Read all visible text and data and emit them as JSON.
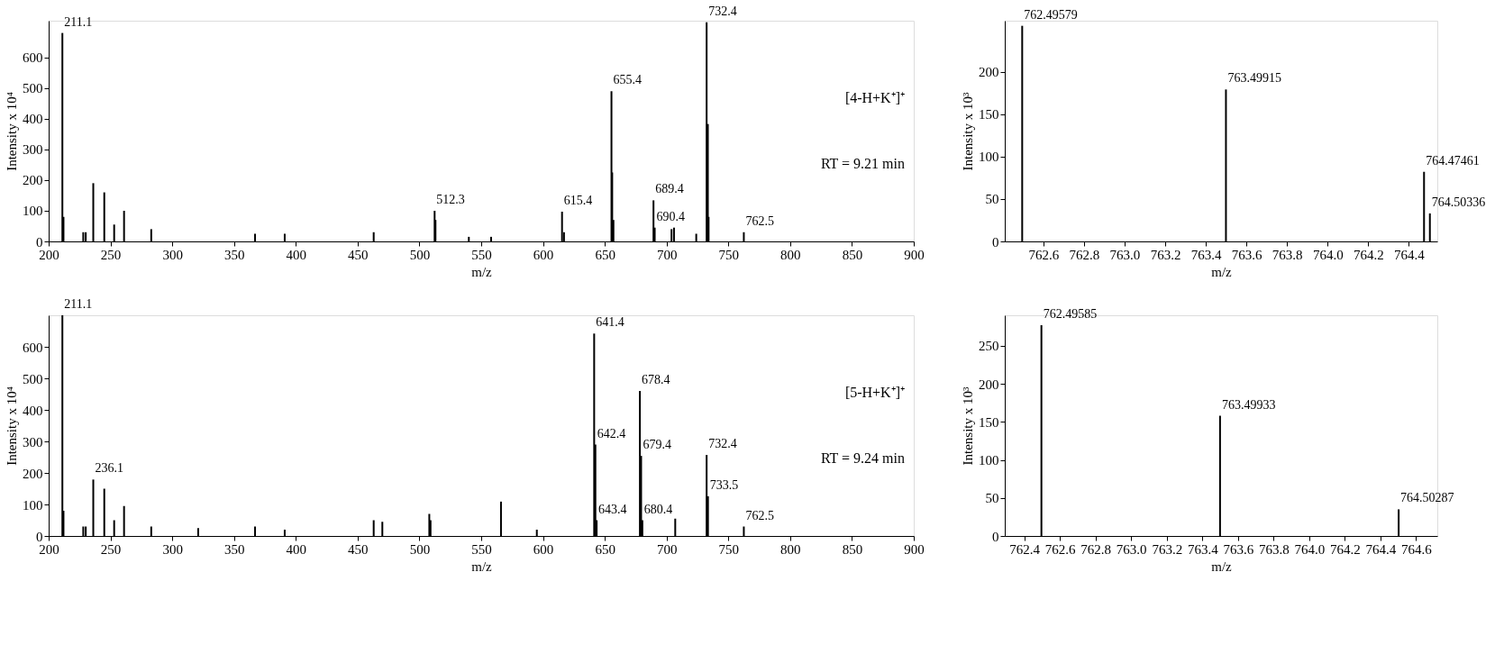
{
  "chart_data": [
    {
      "type": "bar",
      "color": "#000000",
      "xlabel": "m/z",
      "ylabel": "Intensity x 10⁴",
      "xlim": [
        200,
        900
      ],
      "xticks": [
        200,
        250,
        300,
        350,
        400,
        450,
        500,
        550,
        600,
        650,
        700,
        750,
        800,
        850,
        900
      ],
      "ylim": [
        0,
        720
      ],
      "yticks": [
        0,
        100,
        200,
        300,
        400,
        500,
        600
      ],
      "grid": false,
      "x": [
        211.1,
        212.0,
        228.0,
        230.0,
        236.1,
        245.0,
        253.0,
        261.0,
        283.0,
        367.0,
        391.0,
        463.0,
        512.3,
        513.0,
        540.0,
        558.0,
        615.4,
        617.0,
        655.4,
        656.0,
        657.0,
        689.4,
        690.4,
        704.0,
        706.0,
        724.0,
        732.4,
        733.4,
        734.0,
        762.5
      ],
      "values": [
        680,
        80,
        30,
        30,
        190,
        160,
        55,
        100,
        40,
        25,
        25,
        30,
        100,
        70,
        15,
        15,
        97,
        30,
        490,
        225,
        70,
        134,
        45,
        40,
        45,
        25,
        715,
        383,
        80,
        30
      ],
      "annotations": [
        {
          "text": "211.1",
          "x": 211.1,
          "y": 680
        },
        {
          "text": "512.3",
          "x": 512.3,
          "y": 100
        },
        {
          "text": "615.4",
          "x": 615.4,
          "y": 97
        },
        {
          "text": "655.4",
          "x": 655.4,
          "y": 490
        },
        {
          "text": "689.4",
          "x": 689.4,
          "y": 134
        },
        {
          "text": "690.4",
          "x": 690.4,
          "y": 45
        },
        {
          "text": "732.4",
          "x": 732.4,
          "y": 715
        },
        {
          "text": "762.5",
          "x": 762.5,
          "y": 30
        },
        "[4-H+K⁺]⁺",
        "RT = 9.21 min"
      ]
    },
    {
      "type": "bar",
      "color": "#000000",
      "xlabel": "m/z",
      "ylabel": "Intensity x 10³",
      "xlim": [
        762.41,
        764.54
      ],
      "xticks": [
        {
          "value": 762.6,
          "label": "762.6"
        },
        {
          "value": 762.8,
          "label": "762.8"
        },
        {
          "value": 763.0,
          "label": "763.0"
        },
        {
          "value": 763.2,
          "label": "763.2"
        },
        {
          "value": 763.4,
          "label": "763.4"
        },
        {
          "value": 763.6,
          "label": "763.6"
        },
        {
          "value": 763.8,
          "label": "763.8"
        },
        {
          "value": 764.0,
          "label": "764.0"
        },
        {
          "value": 764.2,
          "label": "764.2"
        },
        {
          "value": 764.4,
          "label": "764.4"
        }
      ],
      "ylim": [
        0,
        260
      ],
      "yticks": [
        0,
        50,
        100,
        150,
        200
      ],
      "grid": false,
      "x": [
        762.49579,
        763.49915,
        764.47461,
        764.50336
      ],
      "values": [
        254,
        179,
        82,
        33
      ],
      "annotations": [
        {
          "text": "762.49579",
          "x": 762.49579,
          "y": 254
        },
        {
          "text": "763.49915",
          "x": 763.49915,
          "y": 179
        },
        {
          "text": "764.47461",
          "x": 764.47461,
          "y": 82
        },
        {
          "text": "764.50336",
          "x": 764.50336,
          "y": 33
        }
      ]
    },
    {
      "type": "bar",
      "color": "#000000",
      "xlabel": "m/z",
      "ylabel": "Intensity x 10⁴",
      "xlim": [
        200,
        900
      ],
      "xticks": [
        200,
        250,
        300,
        350,
        400,
        450,
        500,
        550,
        600,
        650,
        700,
        750,
        800,
        850,
        900
      ],
      "ylim": [
        0,
        700
      ],
      "yticks": [
        0,
        100,
        200,
        300,
        400,
        500,
        600
      ],
      "grid": false,
      "x": [
        211.1,
        212.0,
        228.0,
        230.0,
        236.1,
        245.0,
        253.0,
        261.0,
        283.0,
        321.0,
        367.0,
        391.0,
        463.0,
        470.0,
        508.0,
        509.0,
        566.0,
        595.0,
        641.4,
        642.4,
        643.4,
        678.4,
        679.4,
        680.4,
        707.0,
        732.4,
        733.5,
        762.5
      ],
      "values": [
        700,
        80,
        30,
        30,
        179,
        150,
        50,
        95,
        30,
        25,
        30,
        20,
        50,
        45,
        70,
        50,
        109,
        20,
        642,
        290,
        50,
        460,
        254,
        50,
        55,
        257,
        126,
        30
      ],
      "annotations": [
        {
          "text": "211.1",
          "x": 211.1,
          "y": 700
        },
        {
          "text": "236.1",
          "x": 236.1,
          "y": 179
        },
        {
          "text": "641.4",
          "x": 641.4,
          "y": 642
        },
        {
          "text": "642.4",
          "x": 642.4,
          "y": 290
        },
        {
          "text": "643.4",
          "x": 643.4,
          "y": 50
        },
        {
          "text": "678.4",
          "x": 678.4,
          "y": 460
        },
        {
          "text": "679.4",
          "x": 679.4,
          "y": 254
        },
        {
          "text": "680.4",
          "x": 680.4,
          "y": 50
        },
        {
          "text": "732.4",
          "x": 732.4,
          "y": 257
        },
        {
          "text": "733.5",
          "x": 733.5,
          "y": 126
        },
        {
          "text": "762.5",
          "x": 762.5,
          "y": 30
        },
        "[5-H+K⁺]⁺",
        "RT = 9.24 min"
      ]
    },
    {
      "type": "bar",
      "color": "#000000",
      "xlabel": "m/z",
      "ylabel": "Intensity x 10³",
      "xlim": [
        762.29,
        764.72
      ],
      "xticks": [
        {
          "value": 762.4,
          "label": "762.4"
        },
        {
          "value": 762.6,
          "label": "762.6"
        },
        {
          "value": 762.8,
          "label": "762.8"
        },
        {
          "value": 763.0,
          "label": "763.0"
        },
        {
          "value": 763.2,
          "label": "763.2"
        },
        {
          "value": 763.4,
          "label": "763.4"
        },
        {
          "value": 763.6,
          "label": "763.6"
        },
        {
          "value": 763.8,
          "label": "763.8"
        },
        {
          "value": 764.0,
          "label": "764.0"
        },
        {
          "value": 764.2,
          "label": "764.2"
        },
        {
          "value": 764.4,
          "label": "764.4"
        },
        {
          "value": 764.6,
          "label": "764.6"
        }
      ],
      "ylim": [
        0,
        290
      ],
      "yticks": [
        0,
        50,
        100,
        150,
        200,
        250
      ],
      "grid": false,
      "x": [
        762.49585,
        763.49933,
        764.50287
      ],
      "values": [
        277,
        158,
        35
      ],
      "annotations": [
        {
          "text": "762.49585",
          "x": 762.49585,
          "y": 277
        },
        {
          "text": "763.49933",
          "x": 763.49933,
          "y": 158
        },
        {
          "text": "764.50287",
          "x": 764.50287,
          "y": 35
        }
      ]
    }
  ]
}
